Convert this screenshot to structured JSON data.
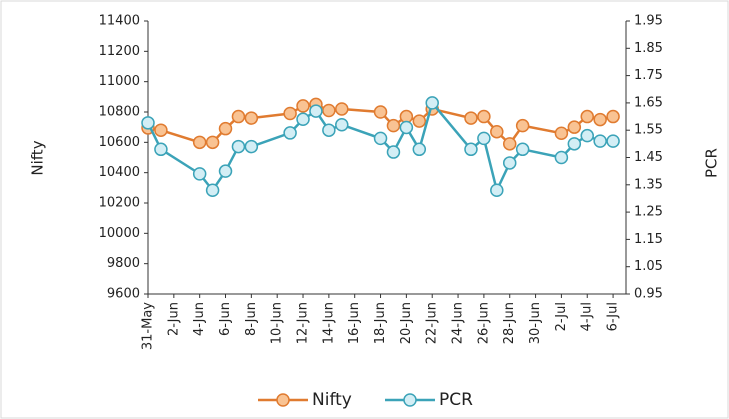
{
  "chart_data": {
    "type": "line",
    "x": [
      "31-May",
      "1-Jun",
      "4-Jun",
      "5-Jun",
      "6-Jun",
      "7-Jun",
      "8-Jun",
      "11-Jun",
      "12-Jun",
      "13-Jun",
      "14-Jun",
      "15-Jun",
      "18-Jun",
      "19-Jun",
      "20-Jun",
      "21-Jun",
      "22-Jun",
      "25-Jun",
      "26-Jun",
      "27-Jun",
      "28-Jun",
      "29-Jun",
      "2-Jul",
      "3-Jul",
      "4-Jul",
      "5-Jul",
      "6-Jul"
    ],
    "xlim": [
      "31-May",
      "7-Jul"
    ],
    "xticks": [
      "31-May",
      "2-Jun",
      "4-Jun",
      "6-Jun",
      "8-Jun",
      "10-Jun",
      "12-Jun",
      "14-Jun",
      "16-Jun",
      "18-Jun",
      "20-Jun",
      "22-Jun",
      "24-Jun",
      "26-Jun",
      "28-Jun",
      "30-Jun",
      "2-Jul",
      "4-Jul",
      "6-Jul"
    ],
    "ylabel": "Nifty",
    "y2label": "PCR",
    "ylim": [
      9600,
      11400
    ],
    "yticks": [
      9600,
      9800,
      10000,
      10200,
      10400,
      10600,
      10800,
      11000,
      11200,
      11400
    ],
    "y2lim": [
      0.95,
      1.95
    ],
    "y2ticks": [
      0.95,
      1.05,
      1.15,
      1.25,
      1.35,
      1.45,
      1.55,
      1.65,
      1.75,
      1.85,
      1.95
    ],
    "legend": "bottom",
    "series": [
      {
        "name": "Nifty",
        "color": "#e07b30",
        "marker_fill": "#f9c393",
        "values": [
          10695,
          10680,
          10600,
          10600,
          10690,
          10770,
          10760,
          10790,
          10840,
          10850,
          10810,
          10820,
          10800,
          10710,
          10770,
          10740,
          10820,
          10760,
          10770,
          10670,
          10590,
          10710,
          10660,
          10700,
          10770,
          10750,
          10770
        ]
      },
      {
        "name": "PCR",
        "color": "#3ba3b8",
        "marker_fill": "#d3eef5",
        "axis": "y2",
        "values": [
          1.577,
          1.48,
          1.39,
          1.33,
          1.4,
          1.49,
          1.49,
          1.54,
          1.59,
          1.62,
          1.55,
          1.57,
          1.52,
          1.47,
          1.56,
          1.48,
          1.65,
          1.48,
          1.52,
          1.33,
          1.43,
          1.48,
          1.45,
          1.5,
          1.53,
          1.51,
          1.51
        ]
      }
    ]
  }
}
